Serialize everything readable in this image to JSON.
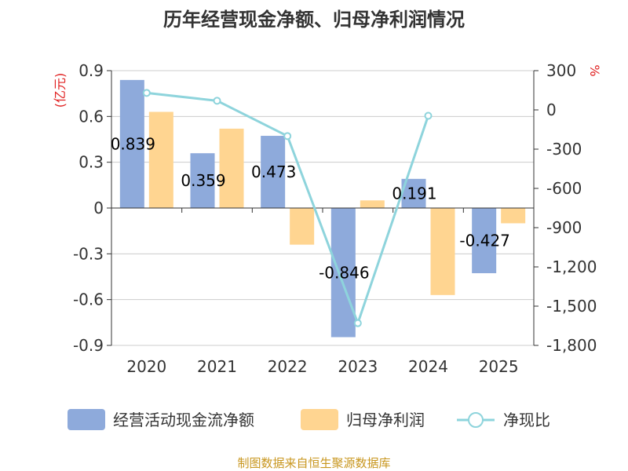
{
  "chart_data": {
    "type": "bar",
    "title": "历年经营现金净额、归母净利润情况",
    "categories": [
      "2020",
      "2021",
      "2022",
      "2023",
      "2024",
      "2025"
    ],
    "series": [
      {
        "name": "经营活动现金流净额",
        "type": "bar",
        "axis": "left",
        "values": [
          0.839,
          0.359,
          0.473,
          -0.846,
          0.191,
          -0.427
        ],
        "data_labels": [
          "0.839",
          "0.359",
          "0.473",
          "-0.846",
          "0.191",
          "-0.427"
        ]
      },
      {
        "name": "归母净利润",
        "type": "bar",
        "axis": "left",
        "values": [
          0.63,
          0.52,
          -0.24,
          0.05,
          -0.57,
          -0.1
        ]
      },
      {
        "name": "净现比",
        "type": "line",
        "axis": "right",
        "values": [
          130,
          70,
          -200,
          -1630,
          -45,
          null
        ]
      }
    ],
    "y_left": {
      "label": "(亿元)",
      "ylim": [
        -0.9,
        0.9
      ],
      "ticks": [
        0.9,
        0.6,
        0.3,
        0,
        -0.3,
        -0.6,
        -0.9
      ],
      "tick_labels": [
        "0.9",
        "0.6",
        "0.3",
        "0",
        "-0.3",
        "-0.6",
        "-0.9"
      ]
    },
    "y_right": {
      "label": "%",
      "ylim": [
        -1800,
        300
      ],
      "ticks": [
        300,
        0,
        -300,
        -600,
        -900,
        -1200,
        -1500,
        -1800
      ],
      "tick_labels": [
        "300",
        "0",
        "-300",
        "-600",
        "-900",
        "-1,200",
        "-1,500",
        "-1,800"
      ]
    },
    "legend_position": "bottom",
    "grid": true,
    "colors": {
      "cash": "#8eaadb",
      "profit": "#ffd591",
      "ratio": "#8ed4dc",
      "axis": "#333333",
      "grid": "#cccccc"
    },
    "footer": "制图数据来自恒生聚源数据库"
  }
}
